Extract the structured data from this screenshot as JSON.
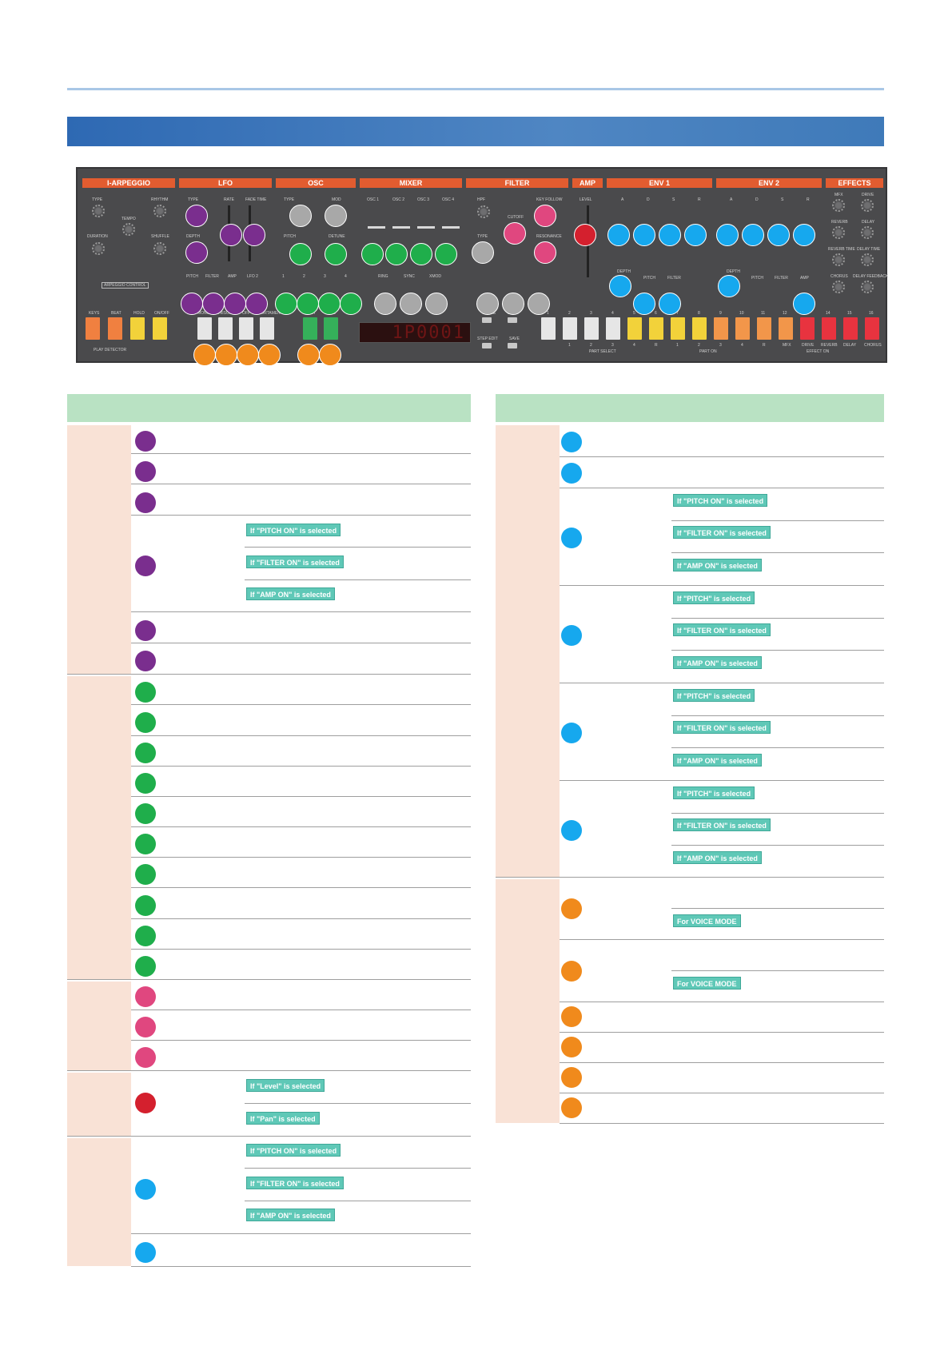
{
  "panel": {
    "sections": [
      "I-ARPEGGIO",
      "LFO",
      "OSC",
      "MIXER",
      "FILTER",
      "AMP",
      "ENV 1",
      "ENV 2",
      "EFFECTS"
    ],
    "arp_labels": [
      "TYPE",
      "RHYTHM",
      "TEMPO",
      "DURATION",
      "SHUFFLE",
      "ARPEGGIO CONTROL"
    ],
    "lfo_labels": [
      "TYPE",
      "RATE",
      "FADE TIME",
      "DEPTH",
      "PITCH",
      "FILTER",
      "AMP",
      "LFO 2"
    ],
    "osc_labels": [
      "TYPE",
      "MOD",
      "PITCH",
      "DETUNE",
      "1",
      "2",
      "3",
      "4"
    ],
    "mixer_labels": [
      "OSC 1",
      "OSC 2",
      "OSC 3",
      "OSC 4",
      "RING",
      "SYNC",
      "XMOD"
    ],
    "filter_labels": [
      "HPF",
      "KEY FOLLOW",
      "CUTOFF",
      "TYPE",
      "RESONANCE"
    ],
    "amp_labels": [
      "LEVEL"
    ],
    "env1_labels": [
      "A",
      "D",
      "S",
      "R",
      "DEPTH",
      "PITCH",
      "FILTER"
    ],
    "env2_labels": [
      "A",
      "D",
      "S",
      "R",
      "DEPTH",
      "PITCH",
      "FILTER",
      "AMP"
    ],
    "effects_labels": [
      "MFX",
      "DRIVE",
      "REVERB",
      "DELAY",
      "REVERB TIME",
      "DELAY TIME",
      "CHORUS",
      "DELAY FEEDBACK"
    ],
    "bottom_left": [
      "KEYS",
      "BEAT",
      "HOLD",
      "ON/OFF",
      "PLAY DETECTOR"
    ],
    "voice_labels": [
      "MONO",
      "UNISON",
      "OFF",
      "PORTAMENTO",
      "SPLIT",
      "DUAL"
    ],
    "scene_labels": [
      "SCENE",
      "BANK",
      "STEP EDIT",
      "SAVE"
    ],
    "step_numbers": [
      "1",
      "2",
      "3",
      "4",
      "5",
      "6",
      "7",
      "8",
      "9",
      "10",
      "11",
      "12",
      "13",
      "14",
      "15",
      "16"
    ],
    "step_bottom": [
      "1",
      "2",
      "3",
      "4",
      "R",
      "1",
      "2",
      "3",
      "4",
      "R",
      "MFX",
      "DRIVE",
      "REVERB",
      "DELAY",
      "CHORUS"
    ],
    "step_groups": [
      "PART SELECT",
      "PART ON",
      "EFFECT ON"
    ],
    "display": "1P0001"
  },
  "conditions": {
    "left_row4": [
      "If \"PITCH ON\" is selected",
      "If \"FILTER ON\" is selected",
      "If \"AMP ON\" is selected"
    ],
    "left_amp": [
      "If \"Level\" is selected",
      "If \"Pan\" is selected"
    ],
    "left_env": [
      "If \"PITCH ON\" is selected",
      "If \"FILTER ON\" is selected",
      "If \"AMP ON\" is selected"
    ],
    "right_env_a": [
      "If \"PITCH ON\" is selected",
      "If \"FILTER ON\" is selected",
      "If \"AMP ON\" is selected"
    ],
    "right_env_b": [
      "If \"PITCH\" is selected",
      "If \"FILTER ON\" is selected",
      "If \"AMP ON\" is selected"
    ],
    "right_env_c": [
      "If \"PITCH\" is selected",
      "If \"FILTER ON\" is selected",
      "If \"AMP ON\" is selected"
    ],
    "right_env_d": [
      "If \"PITCH\" is selected",
      "If \"FILTER ON\" is selected",
      "If \"AMP ON\" is selected"
    ],
    "right_orange": [
      "For VOICE MODE",
      "For VOICE MODE"
    ]
  },
  "colors": {
    "purple": "#7a2e8e",
    "grey": "#a8a8a8",
    "green": "#1fae4b",
    "pink": "#e0477f",
    "red": "#d4202e",
    "blue": "#16a8ee",
    "orange": "#f08a1c",
    "table_header": "#b9e2c3",
    "group_bg": "#f9e2d6"
  }
}
